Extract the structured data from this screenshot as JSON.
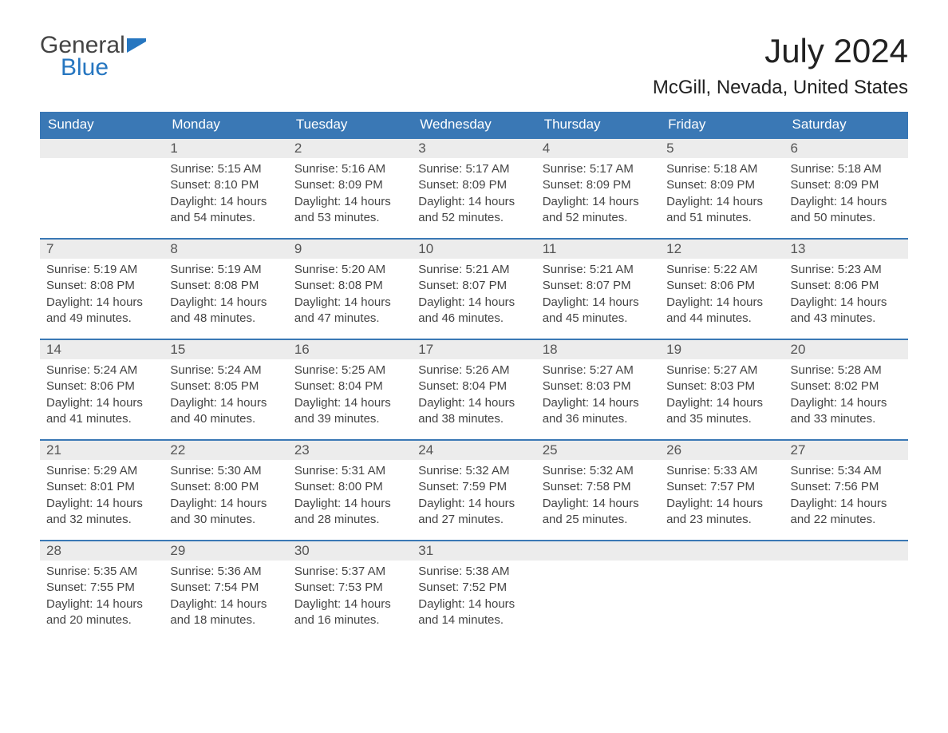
{
  "brand": {
    "general": "General",
    "blue": "Blue"
  },
  "title": "July 2024",
  "location": "McGill, Nevada, United States",
  "colors": {
    "header_bg": "#3a78b5",
    "header_text": "#ffffff",
    "daynum_bg": "#ececec",
    "row_border": "#3a78b5",
    "body_text": "#444444",
    "brand_blue": "#2676c0",
    "brand_gray": "#444444",
    "background": "#ffffff"
  },
  "weekdays": [
    "Sunday",
    "Monday",
    "Tuesday",
    "Wednesday",
    "Thursday",
    "Friday",
    "Saturday"
  ],
  "weeks": [
    [
      null,
      {
        "n": "1",
        "sunrise": "Sunrise: 5:15 AM",
        "sunset": "Sunset: 8:10 PM",
        "daylight": "Daylight: 14 hours and 54 minutes."
      },
      {
        "n": "2",
        "sunrise": "Sunrise: 5:16 AM",
        "sunset": "Sunset: 8:09 PM",
        "daylight": "Daylight: 14 hours and 53 minutes."
      },
      {
        "n": "3",
        "sunrise": "Sunrise: 5:17 AM",
        "sunset": "Sunset: 8:09 PM",
        "daylight": "Daylight: 14 hours and 52 minutes."
      },
      {
        "n": "4",
        "sunrise": "Sunrise: 5:17 AM",
        "sunset": "Sunset: 8:09 PM",
        "daylight": "Daylight: 14 hours and 52 minutes."
      },
      {
        "n": "5",
        "sunrise": "Sunrise: 5:18 AM",
        "sunset": "Sunset: 8:09 PM",
        "daylight": "Daylight: 14 hours and 51 minutes."
      },
      {
        "n": "6",
        "sunrise": "Sunrise: 5:18 AM",
        "sunset": "Sunset: 8:09 PM",
        "daylight": "Daylight: 14 hours and 50 minutes."
      }
    ],
    [
      {
        "n": "7",
        "sunrise": "Sunrise: 5:19 AM",
        "sunset": "Sunset: 8:08 PM",
        "daylight": "Daylight: 14 hours and 49 minutes."
      },
      {
        "n": "8",
        "sunrise": "Sunrise: 5:19 AM",
        "sunset": "Sunset: 8:08 PM",
        "daylight": "Daylight: 14 hours and 48 minutes."
      },
      {
        "n": "9",
        "sunrise": "Sunrise: 5:20 AM",
        "sunset": "Sunset: 8:08 PM",
        "daylight": "Daylight: 14 hours and 47 minutes."
      },
      {
        "n": "10",
        "sunrise": "Sunrise: 5:21 AM",
        "sunset": "Sunset: 8:07 PM",
        "daylight": "Daylight: 14 hours and 46 minutes."
      },
      {
        "n": "11",
        "sunrise": "Sunrise: 5:21 AM",
        "sunset": "Sunset: 8:07 PM",
        "daylight": "Daylight: 14 hours and 45 minutes."
      },
      {
        "n": "12",
        "sunrise": "Sunrise: 5:22 AM",
        "sunset": "Sunset: 8:06 PM",
        "daylight": "Daylight: 14 hours and 44 minutes."
      },
      {
        "n": "13",
        "sunrise": "Sunrise: 5:23 AM",
        "sunset": "Sunset: 8:06 PM",
        "daylight": "Daylight: 14 hours and 43 minutes."
      }
    ],
    [
      {
        "n": "14",
        "sunrise": "Sunrise: 5:24 AM",
        "sunset": "Sunset: 8:06 PM",
        "daylight": "Daylight: 14 hours and 41 minutes."
      },
      {
        "n": "15",
        "sunrise": "Sunrise: 5:24 AM",
        "sunset": "Sunset: 8:05 PM",
        "daylight": "Daylight: 14 hours and 40 minutes."
      },
      {
        "n": "16",
        "sunrise": "Sunrise: 5:25 AM",
        "sunset": "Sunset: 8:04 PM",
        "daylight": "Daylight: 14 hours and 39 minutes."
      },
      {
        "n": "17",
        "sunrise": "Sunrise: 5:26 AM",
        "sunset": "Sunset: 8:04 PM",
        "daylight": "Daylight: 14 hours and 38 minutes."
      },
      {
        "n": "18",
        "sunrise": "Sunrise: 5:27 AM",
        "sunset": "Sunset: 8:03 PM",
        "daylight": "Daylight: 14 hours and 36 minutes."
      },
      {
        "n": "19",
        "sunrise": "Sunrise: 5:27 AM",
        "sunset": "Sunset: 8:03 PM",
        "daylight": "Daylight: 14 hours and 35 minutes."
      },
      {
        "n": "20",
        "sunrise": "Sunrise: 5:28 AM",
        "sunset": "Sunset: 8:02 PM",
        "daylight": "Daylight: 14 hours and 33 minutes."
      }
    ],
    [
      {
        "n": "21",
        "sunrise": "Sunrise: 5:29 AM",
        "sunset": "Sunset: 8:01 PM",
        "daylight": "Daylight: 14 hours and 32 minutes."
      },
      {
        "n": "22",
        "sunrise": "Sunrise: 5:30 AM",
        "sunset": "Sunset: 8:00 PM",
        "daylight": "Daylight: 14 hours and 30 minutes."
      },
      {
        "n": "23",
        "sunrise": "Sunrise: 5:31 AM",
        "sunset": "Sunset: 8:00 PM",
        "daylight": "Daylight: 14 hours and 28 minutes."
      },
      {
        "n": "24",
        "sunrise": "Sunrise: 5:32 AM",
        "sunset": "Sunset: 7:59 PM",
        "daylight": "Daylight: 14 hours and 27 minutes."
      },
      {
        "n": "25",
        "sunrise": "Sunrise: 5:32 AM",
        "sunset": "Sunset: 7:58 PM",
        "daylight": "Daylight: 14 hours and 25 minutes."
      },
      {
        "n": "26",
        "sunrise": "Sunrise: 5:33 AM",
        "sunset": "Sunset: 7:57 PM",
        "daylight": "Daylight: 14 hours and 23 minutes."
      },
      {
        "n": "27",
        "sunrise": "Sunrise: 5:34 AM",
        "sunset": "Sunset: 7:56 PM",
        "daylight": "Daylight: 14 hours and 22 minutes."
      }
    ],
    [
      {
        "n": "28",
        "sunrise": "Sunrise: 5:35 AM",
        "sunset": "Sunset: 7:55 PM",
        "daylight": "Daylight: 14 hours and 20 minutes."
      },
      {
        "n": "29",
        "sunrise": "Sunrise: 5:36 AM",
        "sunset": "Sunset: 7:54 PM",
        "daylight": "Daylight: 14 hours and 18 minutes."
      },
      {
        "n": "30",
        "sunrise": "Sunrise: 5:37 AM",
        "sunset": "Sunset: 7:53 PM",
        "daylight": "Daylight: 14 hours and 16 minutes."
      },
      {
        "n": "31",
        "sunrise": "Sunrise: 5:38 AM",
        "sunset": "Sunset: 7:52 PM",
        "daylight": "Daylight: 14 hours and 14 minutes."
      },
      null,
      null,
      null
    ]
  ]
}
